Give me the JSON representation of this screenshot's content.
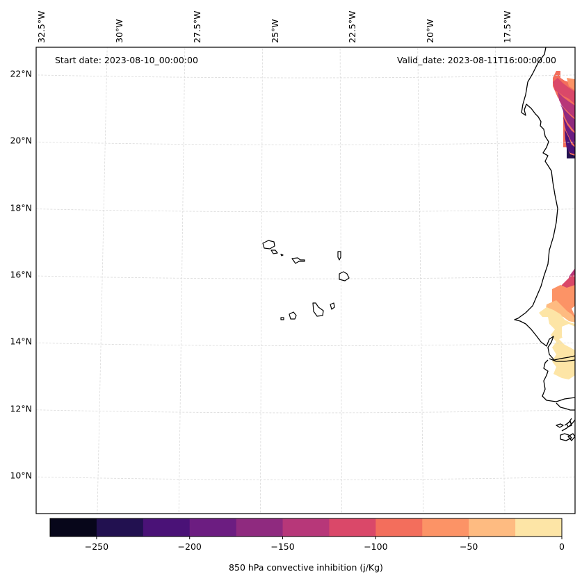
{
  "map": {
    "start_date_label": "Start date: 2023-08-10_00:00:00",
    "valid_date_label": "Valid_date: 2023-08-11T16:00:00.00",
    "lon_ticks": [
      "32.5°W",
      "30°W",
      "27.5°W",
      "25°W",
      "22.5°W",
      "20°W",
      "17.5°W"
    ],
    "lat_ticks": [
      "22°N",
      "20°N",
      "18°N",
      "16°N",
      "14°N",
      "12°N",
      "10°N"
    ],
    "lon_values": [
      -32.5,
      -30,
      -27.5,
      -25,
      -22.5,
      -20,
      -17.5
    ],
    "lat_values": [
      22,
      20,
      18,
      16,
      14,
      12,
      10
    ],
    "features": [
      "West African coastline (Mauritania, Senegal, Gambia, Guinea-Bissau, Guinea)",
      "Cape Verde islands"
    ],
    "gridline_color": "#dddddd",
    "coastline_color": "#000000"
  },
  "chart_data": {
    "type": "heatmap",
    "title": "",
    "variable": "850 hPa convective inhibition",
    "units": "j/Kg",
    "colorbar_label": "850 hPa convective inhibition (j/Kg)",
    "colorbar_range": [
      -275,
      0
    ],
    "colorbar_levels": [
      -275,
      -250,
      -225,
      -200,
      -175,
      -150,
      -125,
      -100,
      -75,
      -50,
      -25,
      0
    ],
    "colorbar_tick_values": [
      -250,
      -200,
      -150,
      -100,
      -50,
      0
    ],
    "colorbar_tick_labels": [
      "−250",
      "−200",
      "−150",
      "−100",
      "−50",
      "0"
    ],
    "colormap": "magma",
    "colors": [
      "#07061a",
      "#221150",
      "#4a1277",
      "#6c1d81",
      "#8f2a7f",
      "#b73779",
      "#da4869",
      "#f36e5c",
      "#fc9366",
      "#febb81",
      "#fde5a6"
    ],
    "regions": [
      {
        "name": "Mauritania coast (north)",
        "lat_range": [
          19.5,
          21.8
        ],
        "lon_range": [
          -17.2,
          -16.5
        ],
        "value_range": [
          -250,
          -75
        ]
      },
      {
        "name": "Senegal interior",
        "lat_range": [
          14.5,
          16.2
        ],
        "lon_range": [
          -16.8,
          -16.0
        ],
        "value_range": [
          -125,
          -25
        ]
      },
      {
        "name": "Senegal/Gambia south",
        "lat_range": [
          12.9,
          14.9
        ],
        "lon_range": [
          -16.9,
          -16.0
        ],
        "value_range": [
          -25,
          0
        ]
      }
    ]
  },
  "colorbar": {
    "label": "850 hPa convective inhibition (j/Kg)",
    "ticks": [
      "−250",
      "−200",
      "−150",
      "−100",
      "−50",
      "0"
    ]
  }
}
